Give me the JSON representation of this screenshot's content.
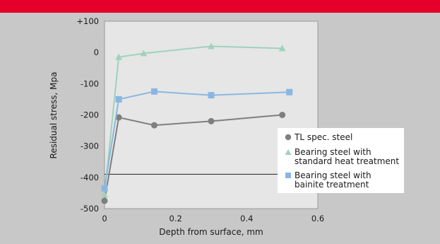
{
  "chart_data": {
    "type": "line",
    "xlabel": "Depth from surface, mm",
    "ylabel": "Residual stress, Mpa",
    "xlim": [
      0,
      0.6
    ],
    "ylim": [
      -500,
      100
    ],
    "x_ticks": [
      0,
      0.2,
      0.4,
      0.6
    ],
    "x_tick_labels": [
      "0",
      "0.2",
      "0.4",
      "0.6"
    ],
    "y_ticks": [
      100,
      0,
      -100,
      -200,
      -300,
      -400,
      -500
    ],
    "y_tick_labels": [
      "+100",
      "0",
      "-100",
      "-200",
      "-300",
      "-400",
      "-500"
    ],
    "reference_line_y": -390,
    "grid": false,
    "legend_position": "right",
    "series": [
      {
        "name": "TL spec. steel",
        "marker": "circle",
        "color": "#7f7f7f",
        "points": [
          [
            0,
            -475
          ],
          [
            0.04,
            -208
          ],
          [
            0.14,
            -233
          ],
          [
            0.3,
            -220
          ],
          [
            0.5,
            -200
          ]
        ]
      },
      {
        "name": "Bearing steel with standard heat treatment",
        "legend_lines": [
          "Bearing steel with",
          "standard heat treatment"
        ],
        "marker": "triangle",
        "color": "#9fd2bd",
        "points": [
          [
            0,
            -455
          ],
          [
            0.04,
            -15
          ],
          [
            0.11,
            -3
          ],
          [
            0.3,
            20
          ],
          [
            0.5,
            13
          ]
        ]
      },
      {
        "name": "Bearing steel with bainite treatment",
        "legend_lines": [
          "Bearing steel with",
          "bainite treatment"
        ],
        "marker": "square",
        "color": "#8ab7e2",
        "points": [
          [
            0,
            -435
          ],
          [
            0.04,
            -150
          ],
          [
            0.14,
            -125
          ],
          [
            0.3,
            -137
          ],
          [
            0.52,
            -127
          ]
        ]
      }
    ]
  }
}
